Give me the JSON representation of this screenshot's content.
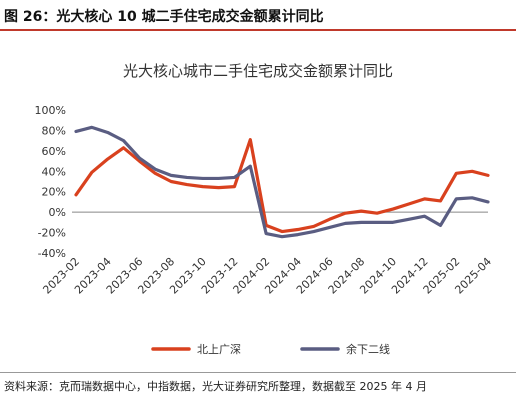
{
  "figure": {
    "label": "图 26：光大核心 10 城二手住宅成交金额累计同比",
    "source": "资料来源：克而瑞数据中心，中指数据，光大证券研究所整理，数据截至 2025 年 4 月"
  },
  "chart_data": {
    "type": "line",
    "title": "光大核心城市二手住宅成交金额累计同比",
    "xlabel": "",
    "ylabel": "",
    "ylim": [
      -40,
      100
    ],
    "yticks": [
      "-40%",
      "-20%",
      "0%",
      "20%",
      "40%",
      "60%",
      "80%",
      "100%"
    ],
    "ytick_values": [
      -40,
      -20,
      0,
      20,
      40,
      60,
      80,
      100
    ],
    "x": [
      "2023-02",
      "2023-03",
      "2023-04",
      "2023-05",
      "2023-06",
      "2023-07",
      "2023-08",
      "2023-09",
      "2023-10",
      "2023-11",
      "2023-12",
      "2024-01",
      "2024-02",
      "2024-03",
      "2024-04",
      "2024-05",
      "2024-06",
      "2024-07",
      "2024-08",
      "2024-09",
      "2024-10",
      "2024-11",
      "2024-12",
      "2025-01",
      "2025-02",
      "2025-03",
      "2025-04"
    ],
    "xtick_labels": [
      "2023-02",
      "2023-04",
      "2023-06",
      "2023-08",
      "2023-10",
      "2023-12",
      "2024-02",
      "2024-04",
      "2024-06",
      "2024-08",
      "2024-10",
      "2024-12",
      "2025-02",
      "2025-04"
    ],
    "grid": false,
    "legend_position": "bottom",
    "series": [
      {
        "name": "北上广深",
        "color": "#d9411e",
        "values": [
          17,
          39,
          52,
          63,
          50,
          38,
          30,
          27,
          25,
          24,
          25,
          71,
          -13,
          -19,
          -17,
          -14,
          -7,
          -1,
          1,
          -1,
          3,
          8,
          13,
          11,
          38,
          40,
          36
        ]
      },
      {
        "name": "余下二线",
        "color": "#5a5d82",
        "values": [
          79,
          83,
          78,
          70,
          53,
          42,
          36,
          34,
          33,
          33,
          34,
          45,
          -21,
          -24,
          -22,
          -19,
          -15,
          -11,
          -10,
          -10,
          -10,
          -7,
          -4,
          -13,
          13,
          14,
          10
        ]
      }
    ]
  }
}
